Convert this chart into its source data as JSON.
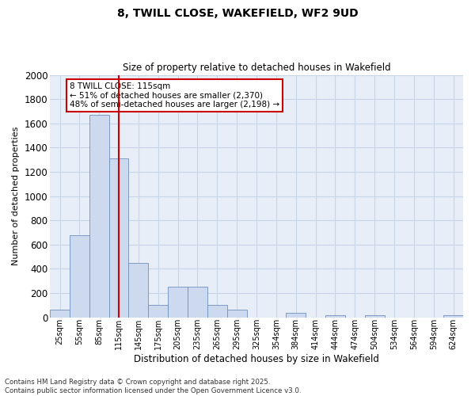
{
  "title1": "8, TWILL CLOSE, WAKEFIELD, WF2 9UD",
  "title2": "Size of property relative to detached houses in Wakefield",
  "xlabel": "Distribution of detached houses by size in Wakefield",
  "ylabel": "Number of detached properties",
  "categories": [
    "25sqm",
    "55sqm",
    "85sqm",
    "115sqm",
    "145sqm",
    "175sqm",
    "205sqm",
    "235sqm",
    "265sqm",
    "295sqm",
    "325sqm",
    "354sqm",
    "384sqm",
    "414sqm",
    "444sqm",
    "474sqm",
    "504sqm",
    "534sqm",
    "564sqm",
    "594sqm",
    "624sqm"
  ],
  "values": [
    60,
    680,
    1670,
    1310,
    450,
    100,
    255,
    255,
    100,
    60,
    0,
    0,
    35,
    0,
    20,
    0,
    15,
    0,
    0,
    0,
    15
  ],
  "bar_color": "#ccd9ee",
  "bar_edge_color": "#7090bb",
  "vline_x": 3,
  "vline_color": "#cc0000",
  "annotation_text": "8 TWILL CLOSE: 115sqm\n← 51% of detached houses are smaller (2,370)\n48% of semi-detached houses are larger (2,198) →",
  "annotation_box_color": "#ffffff",
  "annotation_box_edge_color": "#cc0000",
  "ylim": [
    0,
    2000
  ],
  "yticks": [
    0,
    200,
    400,
    600,
    800,
    1000,
    1200,
    1400,
    1600,
    1800,
    2000
  ],
  "grid_color": "#c8d4e8",
  "background_color": "#e8eef8",
  "footer1": "Contains HM Land Registry data © Crown copyright and database right 2025.",
  "footer2": "Contains public sector information licensed under the Open Government Licence v3.0."
}
